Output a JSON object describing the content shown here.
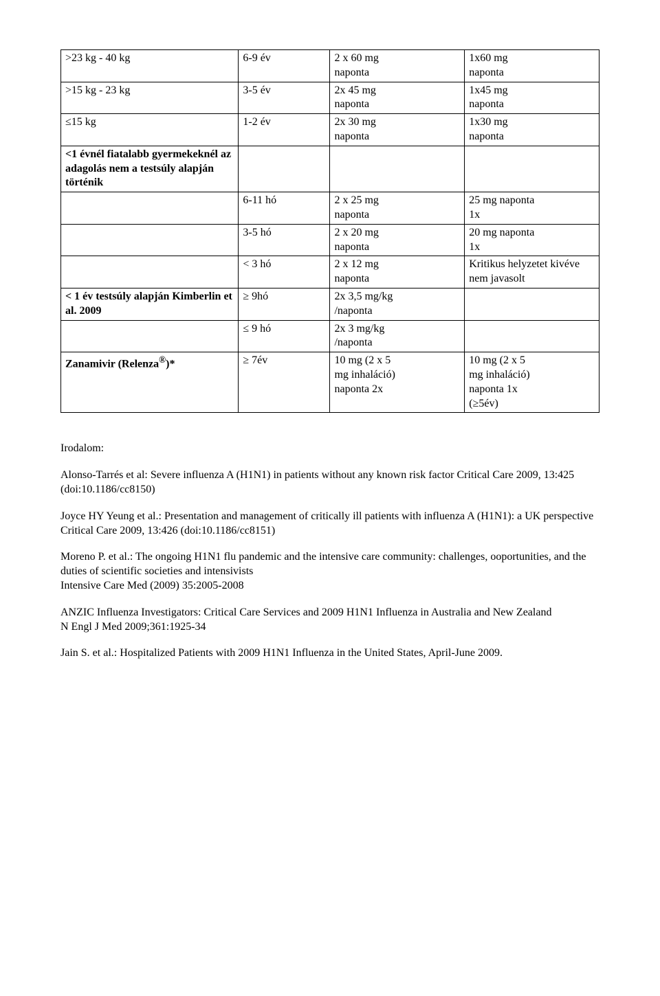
{
  "table": {
    "rows": [
      {
        "c1": ">23 kg - 40 kg",
        "c2": "6-9 év",
        "c3": "2 x 60 mg\nnaponta",
        "c4": "1x60 mg\nnaponta"
      },
      {
        "c1": ">15 kg - 23 kg",
        "c2": "3-5 év",
        "c3": "2x 45 mg\nnaponta",
        "c4": "1x45 mg\nnaponta"
      },
      {
        "c1": "≤15 kg",
        "c2": "1-2 év",
        "c3": "2x 30 mg\nnaponta",
        "c4": "1x30 mg\nnaponta"
      },
      {
        "c1": "<1 évnél fiatalabb gyermekeknél az adagolás nem a testsúly alapján történik",
        "c1bold": true,
        "c2": "",
        "c3": "",
        "c4": ""
      },
      {
        "c1": "",
        "c2": "6-11 hó",
        "c3": "2 x 25 mg\nnaponta",
        "c4": "25 mg naponta\n1x"
      },
      {
        "c1": "",
        "c2": "3-5 hó",
        "c3": "2 x 20 mg\nnaponta",
        "c4": "20 mg naponta\n1x"
      },
      {
        "c1": "",
        "c2": "< 3 hó",
        "c3": "2 x 12 mg\nnaponta",
        "c4": "Kritikus helyzetet kivéve nem javasolt"
      },
      {
        "c1": "< 1 év testsúly alapján Kimberlin et al. 2009",
        "c1bold": true,
        "c2": "≥ 9hó",
        "c3": "2x  3,5 mg/kg\n/naponta",
        "c4": ""
      },
      {
        "c1": "",
        "c2": "≤ 9 hó",
        "c3": "2x  3 mg/kg\n/naponta",
        "c4": ""
      },
      {
        "c1_html": "<b>Zanamivir (Relenza</b><sup><b>®</b></sup><b>)*</b>",
        "c2": "≥ 7év",
        "c3": "10 mg (2 x 5\nmg inhaláció)\nnaponta 2x",
        "c4": "10 mg (2 x 5\nmg inhaláció)\nnaponta 1x\n(≥5év)\n "
      }
    ]
  },
  "refs_heading": "Irodalom:",
  "references": [
    "Alonso-Tarrés et al: Severe influenza A (H1N1) in patients without any known risk factor Critical Care 2009, 13:425 (doi:10.1186/cc8150)",
    "Joyce HY Yeung et al.: Presentation and management of critically ill patients with influenza A (H1N1): a UK perspective\nCritical Care 2009, 13:426 (doi:10.1186/cc8151)",
    "Moreno P. et al.: The ongoing H1N1 flu pandemic and the intensive care community: challenges, ooportunities, and the duties of scientific societies and intensivists\nIntensive Care Med (2009) 35:2005-2008",
    "ANZIC Influenza Investigators: Critical Care Services and 2009 H1N1 Influenza in Australia and New Zealand\nN Engl J Med 2009;361:1925-34",
    "Jain S. et al.: Hospitalized Patients with 2009 H1N1 Influenza in the United States, April-June 2009."
  ]
}
